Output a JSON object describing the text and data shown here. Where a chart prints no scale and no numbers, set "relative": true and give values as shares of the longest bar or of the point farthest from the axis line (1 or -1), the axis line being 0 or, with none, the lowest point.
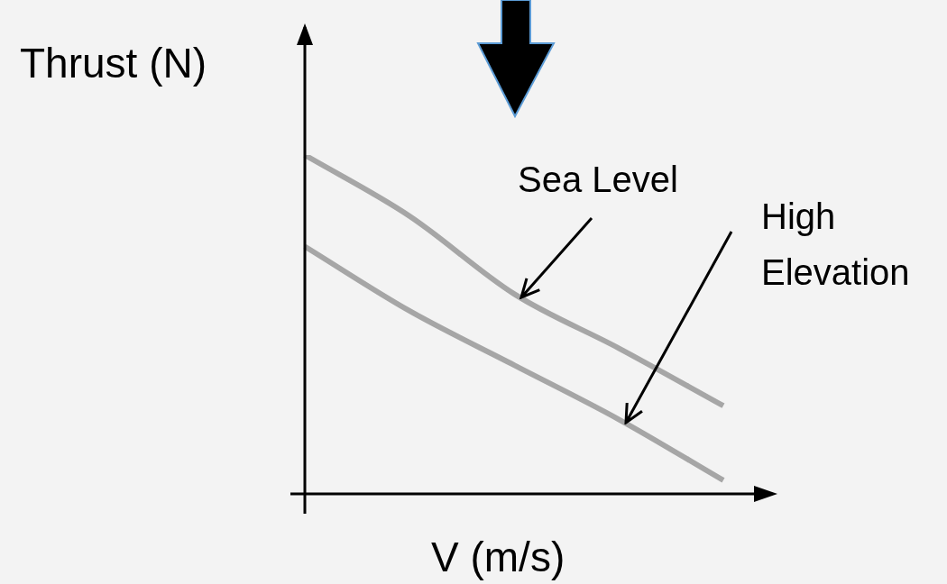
{
  "chart_data": {
    "type": "line",
    "xlabel": "V (m/s)",
    "ylabel": "Thrust (N)",
    "relative": true,
    "categories": [
      null,
      null,
      null,
      null,
      null
    ],
    "series": [
      {
        "name": "Sea Level",
        "color": "#a6a6a6",
        "values": [
          1,
          0.82,
          0.59,
          0.43,
          0.26
        ]
      },
      {
        "name": "High Elevation",
        "color": "#a6a6a6",
        "values": [
          0.73,
          0.54,
          0.38,
          0.22,
          0.04
        ]
      }
    ],
    "legend": false,
    "marker": "none",
    "line_style": "solid"
  }
}
